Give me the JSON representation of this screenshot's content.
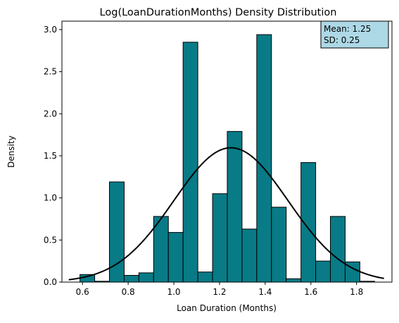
{
  "chart_data": {
    "type": "bar",
    "title": "Log(LoanDurationMonths) Density Distribution",
    "xlabel": "Loan Duration (Months)",
    "ylabel": "Density",
    "xlim": [
      0.51,
      1.955
    ],
    "ylim": [
      0,
      3.1
    ],
    "xticks": [
      "0.6",
      "0.8",
      "1.0",
      "1.2",
      "1.4",
      "1.6",
      "1.8"
    ],
    "yticks": [
      "0.0",
      "0.5",
      "1.0",
      "1.5",
      "2.0",
      "2.5",
      "3.0"
    ],
    "bar_color": "#087b87",
    "bar_edge_color": "#000000",
    "curve_color": "#000000",
    "bin_edges": [
      0.589,
      0.6535,
      0.718,
      0.7825,
      0.847,
      0.9115,
      0.976,
      1.0405,
      1.105,
      1.1695,
      1.234,
      1.2985,
      1.363,
      1.4275,
      1.492,
      1.5565,
      1.621,
      1.6855,
      1.75,
      1.8145,
      1.879
    ],
    "densities": [
      0.09,
      0.01,
      1.19,
      0.08,
      0.11,
      0.78,
      0.59,
      2.85,
      0.12,
      1.05,
      1.79,
      0.63,
      2.94,
      0.89,
      0.04,
      1.42,
      0.25,
      0.78,
      0.24,
      0.01
    ],
    "normal_curve": {
      "mean": 1.25,
      "sd": 0.25,
      "x_range": [
        0.54,
        1.92
      ]
    },
    "stats_box": {
      "mean_text": "Mean: 1.25",
      "sd_text": "SD: 0.25",
      "background": "#add8e6",
      "placement": "top-right"
    }
  }
}
